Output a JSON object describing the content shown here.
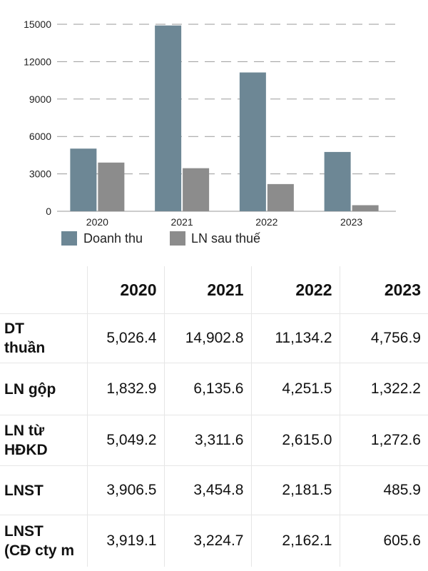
{
  "chart_data": {
    "type": "bar",
    "categories": [
      "2020",
      "2021",
      "2022",
      "2023"
    ],
    "series": [
      {
        "name": "Doanh thu",
        "values": [
          5026.4,
          14902.8,
          11134.2,
          4756.9
        ],
        "color": "#6d8795"
      },
      {
        "name": "LN sau thuế",
        "values": [
          3906.5,
          3454.8,
          2181.5,
          485.9
        ],
        "color": "#8c8c8c"
      }
    ],
    "yticks": [
      "0",
      "3000",
      "6000",
      "9000",
      "12000",
      "15000"
    ],
    "ylim": [
      0,
      15000
    ],
    "grid": true,
    "legend_position": "bottom-left"
  },
  "table": {
    "headers": [
      "",
      "2020",
      "2021",
      "2022",
      "2023"
    ],
    "rows": [
      {
        "label_lines": [
          "DT",
          "thuần"
        ],
        "values": [
          "5,026.4",
          "14,902.8",
          "11,134.2",
          "4,756.9"
        ]
      },
      {
        "label_lines": [
          "LN gộp"
        ],
        "values": [
          "1,832.9",
          "6,135.6",
          "4,251.5",
          "1,322.2"
        ]
      },
      {
        "label_lines": [
          "LN từ",
          "HĐKD"
        ],
        "values": [
          "5,049.2",
          "3,311.6",
          "2,615.0",
          "1,272.6"
        ]
      },
      {
        "label_lines": [
          "LNST"
        ],
        "values": [
          "3,906.5",
          "3,454.8",
          "2,181.5",
          "485.9"
        ]
      },
      {
        "label_lines": [
          "LNST",
          "(CĐ cty m"
        ],
        "values": [
          "3,919.1",
          "3,224.7",
          "2,162.1",
          "605.6"
        ]
      }
    ]
  }
}
